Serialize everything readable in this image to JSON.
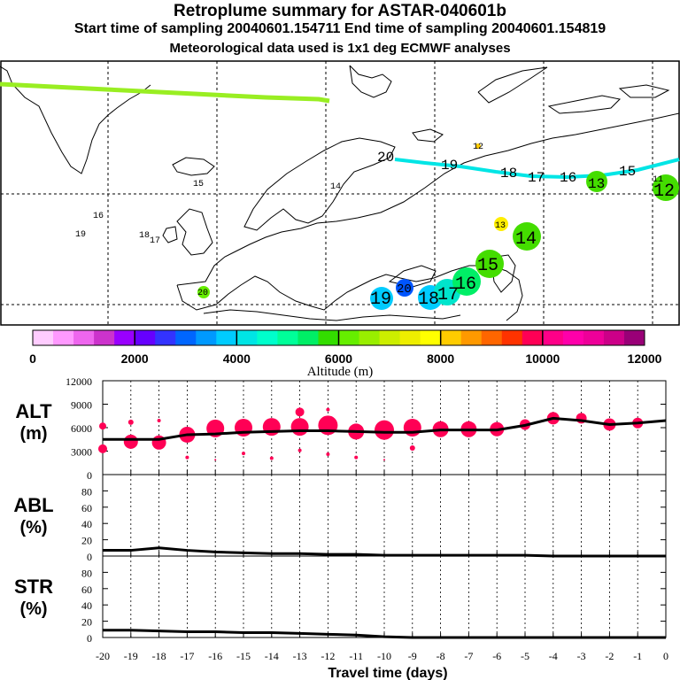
{
  "header": {
    "title": "Retroplume summary for ASTAR-040601b",
    "sampling": "Start time of sampling 20040601.154711     End time of sampling 20040601.154819",
    "met": "Meteorological data used is 1x1 deg ECMWF analyses"
  },
  "colors": {
    "alt_dots": "#ff0055",
    "trajectory_green": "#99ee22",
    "trajectory_cyan": "#00e5e5",
    "line": "#000000"
  },
  "colorbar": {
    "title": "Altitude (m)",
    "ticks": [
      "0",
      "2000",
      "4000",
      "6000",
      "8000",
      "10000",
      "12000"
    ],
    "colors": [
      "#ffccff",
      "#ff99ff",
      "#ee66ee",
      "#cc33cc",
      "#9900ff",
      "#6600ff",
      "#3333ff",
      "#0066ff",
      "#0099ff",
      "#00ccff",
      "#00e5e5",
      "#00ffcc",
      "#00ff99",
      "#00ee66",
      "#33dd00",
      "#66ee00",
      "#99ee00",
      "#ccee00",
      "#eeee00",
      "#ffff00",
      "#ffcc00",
      "#ff9900",
      "#ff6600",
      "#ff3300",
      "#ff0055",
      "#ff0088",
      "#ff00aa",
      "#ee0099",
      "#cc0088",
      "#990077"
    ]
  },
  "map_labels": [
    {
      "text": "20",
      "kind": "plain"
    },
    {
      "text": "19",
      "kind": "plain"
    },
    {
      "text": "18",
      "kind": "plain"
    },
    {
      "text": "17",
      "kind": "plain"
    },
    {
      "text": "16",
      "kind": "plain"
    },
    {
      "text": "15",
      "kind": "plain"
    },
    {
      "text": "13",
      "kind": "green"
    },
    {
      "text": "12",
      "kind": "green"
    },
    {
      "text": "11",
      "kind": "yellow"
    },
    {
      "text": "14",
      "kind": "green"
    },
    {
      "text": "13",
      "kind": "yellow"
    },
    {
      "text": "15",
      "kind": "green"
    },
    {
      "text": "16",
      "kind": "green"
    },
    {
      "text": "17",
      "kind": "cyan"
    },
    {
      "text": "18",
      "kind": "cyan"
    },
    {
      "text": "19",
      "kind": "cyan"
    },
    {
      "text": "20",
      "kind": "blue"
    },
    {
      "text": "12",
      "kind": "orange"
    },
    {
      "text": "14",
      "kind": "yellow"
    },
    {
      "text": "15",
      "kind": "yellow"
    },
    {
      "text": "16",
      "kind": "green"
    },
    {
      "text": "19",
      "kind": "green"
    },
    {
      "text": "18",
      "kind": "green"
    },
    {
      "text": "17",
      "kind": "green"
    },
    {
      "text": "20",
      "kind": "green"
    }
  ],
  "chart_data": [
    {
      "type": "line",
      "panel": "ALT",
      "ylabel": "ALT",
      "yunit": "(m)",
      "ylim": [
        0,
        12000
      ],
      "yticks": [
        "0",
        "3000",
        "6000",
        "9000",
        "12000"
      ],
      "x": [
        -20,
        -19,
        -18,
        -17,
        -16,
        -15,
        -14,
        -13,
        -12,
        -11,
        -10,
        -9,
        -8,
        -7,
        -6,
        -5,
        -4,
        -3,
        -2,
        -1,
        0
      ],
      "values": [
        4500,
        4500,
        4500,
        5100,
        5200,
        5400,
        5500,
        5600,
        5600,
        5500,
        5400,
        5400,
        5700,
        5700,
        5700,
        6300,
        7200,
        6900,
        6400,
        6600,
        6900
      ],
      "dots": [
        {
          "x": -20,
          "y": 3300,
          "s": 5
        },
        {
          "x": -20,
          "y": 6200,
          "s": 4
        },
        {
          "x": -19,
          "y": 4200,
          "s": 8
        },
        {
          "x": -19,
          "y": 6700,
          "s": 3
        },
        {
          "x": -18,
          "y": 4100,
          "s": 8
        },
        {
          "x": -18,
          "y": 6900,
          "s": 2
        },
        {
          "x": -17,
          "y": 5100,
          "s": 9
        },
        {
          "x": -17,
          "y": 2200,
          "s": 2
        },
        {
          "x": -16,
          "y": 5900,
          "s": 10
        },
        {
          "x": -16,
          "y": 1900,
          "s": 1
        },
        {
          "x": -15,
          "y": 6000,
          "s": 10
        },
        {
          "x": -15,
          "y": 2700,
          "s": 2
        },
        {
          "x": -14,
          "y": 6100,
          "s": 10
        },
        {
          "x": -14,
          "y": 2100,
          "s": 2
        },
        {
          "x": -13,
          "y": 6100,
          "s": 10
        },
        {
          "x": -13,
          "y": 8000,
          "s": 5
        },
        {
          "x": -13,
          "y": 3100,
          "s": 2
        },
        {
          "x": -12,
          "y": 6300,
          "s": 11
        },
        {
          "x": -12,
          "y": 8300,
          "s": 2
        },
        {
          "x": -12,
          "y": 2600,
          "s": 2
        },
        {
          "x": -11,
          "y": 5500,
          "s": 9
        },
        {
          "x": -11,
          "y": 2200,
          "s": 2
        },
        {
          "x": -10,
          "y": 5700,
          "s": 11
        },
        {
          "x": -10,
          "y": 1900,
          "s": 1
        },
        {
          "x": -9,
          "y": 6000,
          "s": 10
        },
        {
          "x": -9,
          "y": 3400,
          "s": 3
        },
        {
          "x": -8,
          "y": 5800,
          "s": 9
        },
        {
          "x": -7,
          "y": 5800,
          "s": 9
        },
        {
          "x": -6,
          "y": 5800,
          "s": 8
        },
        {
          "x": -5,
          "y": 6400,
          "s": 6
        },
        {
          "x": -4,
          "y": 7200,
          "s": 7
        },
        {
          "x": -3,
          "y": 7200,
          "s": 6
        },
        {
          "x": -2,
          "y": 6400,
          "s": 7
        },
        {
          "x": -1,
          "y": 6600,
          "s": 6
        }
      ]
    },
    {
      "type": "line",
      "panel": "ABL",
      "ylabel": "ABL",
      "yunit": "(%)",
      "ylim": [
        0,
        100
      ],
      "yticks": [
        "0",
        "20",
        "40",
        "60",
        "80"
      ],
      "x": [
        -20,
        -19,
        -18,
        -17,
        -16,
        -15,
        -14,
        -13,
        -12,
        -11,
        -10,
        -9,
        -8,
        -7,
        -6,
        -5,
        -4,
        -3,
        -2,
        -1,
        0
      ],
      "values": [
        7,
        7,
        10,
        7,
        5,
        4,
        3,
        3,
        2,
        2,
        1,
        1,
        1,
        1,
        1,
        1,
        0,
        0,
        0,
        0,
        0
      ]
    },
    {
      "type": "line",
      "panel": "STR",
      "ylabel": "STR",
      "yunit": "(%)",
      "ylim": [
        0,
        100
      ],
      "yticks": [
        "0",
        "20",
        "40",
        "60",
        "80"
      ],
      "x": [
        -20,
        -19,
        -18,
        -17,
        -16,
        -15,
        -14,
        -13,
        -12,
        -11,
        -10,
        -9,
        -8,
        -7,
        -6,
        -5,
        -4,
        -3,
        -2,
        -1,
        0
      ],
      "values": [
        9,
        9,
        8,
        7,
        7,
        6,
        6,
        5,
        4,
        3,
        1,
        0,
        0,
        0,
        0,
        0,
        0,
        0,
        0,
        0,
        0
      ],
      "xlabel": "Travel time (days)",
      "xticks": [
        "-20",
        "-19",
        "-18",
        "-17",
        "-16",
        "-15",
        "-14",
        "-13",
        "-12",
        "-11",
        "-10",
        "-9",
        "-8",
        "-7",
        "-6",
        "-5",
        "-4",
        "-3",
        "-2",
        "-1",
        "0"
      ]
    }
  ]
}
